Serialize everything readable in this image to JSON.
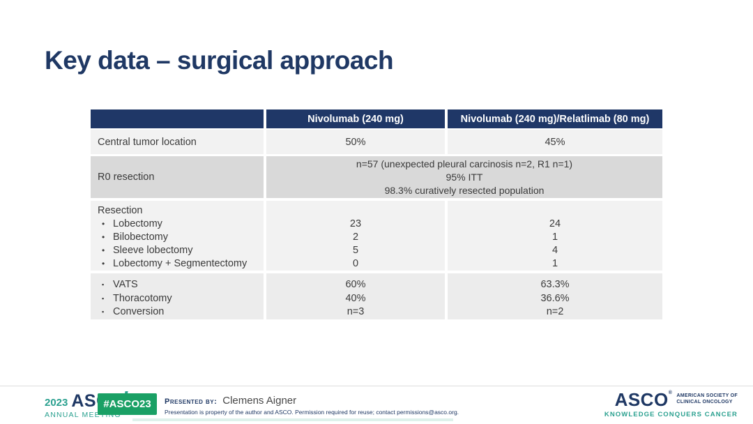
{
  "slide": {
    "title": "Key data – surgical approach"
  },
  "table": {
    "header": {
      "col1": "",
      "col2": "Nivolumab (240 mg)",
      "col3": "Nivolumab (240 mg)/Relatlimab (80 mg)"
    },
    "central_tumor": {
      "label": "Central tumor location",
      "niv": "50%",
      "nivrel": "45%"
    },
    "r0": {
      "label": "R0 resection",
      "line1": "n=57 (unexpected pleural carcinosis n=2, R1 n=1)",
      "line2": "95% ITT",
      "line3": "98.3% curatively resected population"
    },
    "resection": {
      "label": "Resection",
      "bullet": "•",
      "items": [
        {
          "name": "Lobectomy",
          "niv": "23",
          "nivrel": "24"
        },
        {
          "name": "Bilobectomy",
          "niv": "2",
          "nivrel": "1"
        },
        {
          "name": "Sleeve lobectomy",
          "niv": "5",
          "nivrel": "4"
        },
        {
          "name": "Lobectomy + Segmentectomy",
          "niv": "0",
          "nivrel": "1"
        }
      ]
    },
    "approach": {
      "bullet": "▪",
      "items": [
        {
          "name": "VATS",
          "niv": "60%",
          "nivrel": "63.3%"
        },
        {
          "name": "Thoracotomy",
          "niv": "40%",
          "nivrel": "36.6%"
        },
        {
          "name": "Conversion",
          "niv": "n=3",
          "nivrel": "n=2"
        }
      ]
    }
  },
  "footer": {
    "meeting_year": "2023",
    "meeting_logo": "ASCO",
    "meeting_name": "ANNUAL MEETING",
    "hashtag": "#ASCO23",
    "presented_by_label": "Presented by:",
    "presenter": "Clemens Aigner",
    "disclaimer": "Presentation is property of the author and ASCO. Permission required for reuse; contact permissions@asco.org.",
    "asco_logo": "ASCO",
    "asco_reg": "®",
    "asco_society_line1": "AMERICAN SOCIETY OF",
    "asco_society_line2": "CLINICAL ONCOLOGY",
    "asco_tagline": "KNOWLEDGE CONQUERS CANCER"
  },
  "colors": {
    "navy": "#1f3864",
    "header_navy": "#1f3767",
    "teal": "#2aa08f",
    "badge_green": "#1aa065",
    "row_light": "#f2f2f2",
    "row_dark": "#d9d9d9",
    "row_mid": "#ececec"
  }
}
